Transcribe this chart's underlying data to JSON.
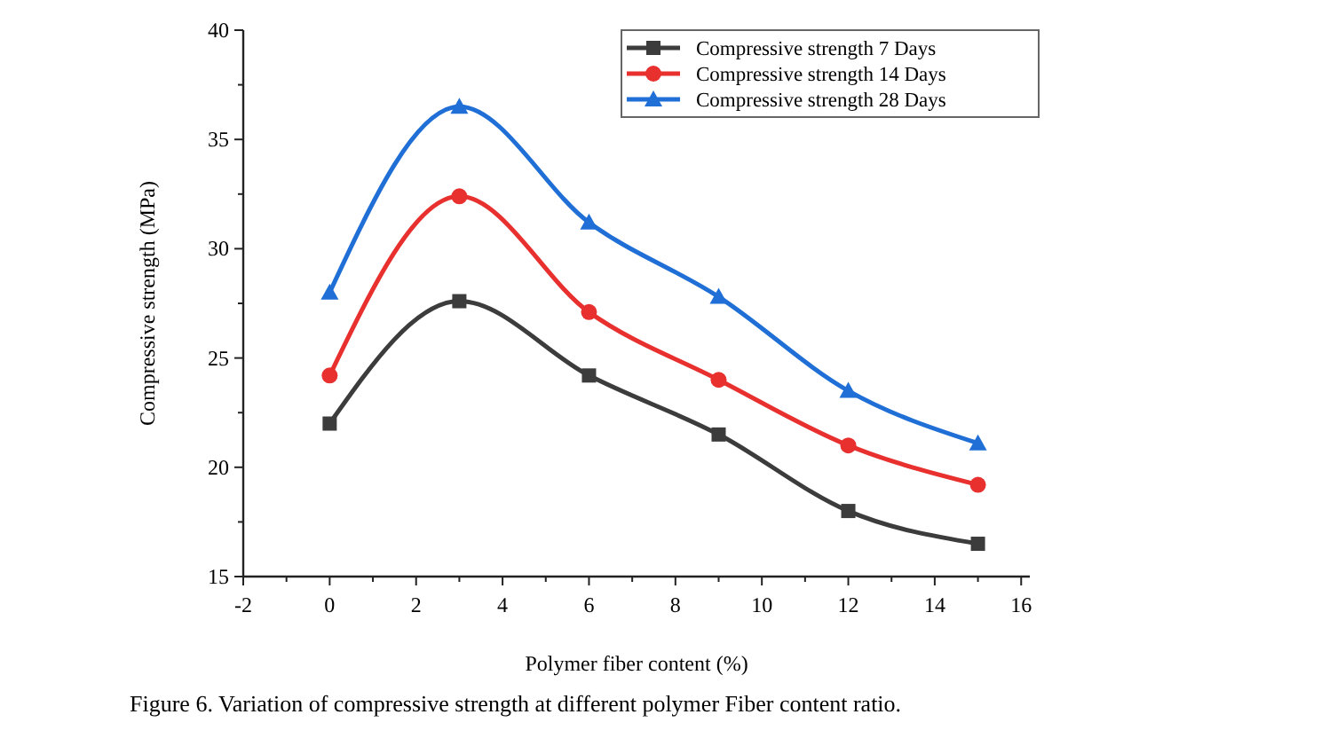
{
  "chart_data": {
    "type": "line",
    "xlabel": "Polymer fiber content (%)",
    "ylabel": "Compressive strength (MPa)",
    "x": [
      0,
      3,
      6,
      9,
      12,
      15
    ],
    "series": [
      {
        "name": "Compressive strength 7 Days",
        "color": "#3c3c3c",
        "marker": "square",
        "values": [
          22,
          27.6,
          24.2,
          21.5,
          18,
          16.5
        ]
      },
      {
        "name": "Compressive strength 14 Days",
        "color": "#e8302f",
        "marker": "circle",
        "values": [
          24.2,
          32.4,
          27.1,
          24,
          21,
          19.2
        ]
      },
      {
        "name": "Compressive strength 28 Days",
        "color": "#1f6fd6",
        "marker": "triangle",
        "values": [
          28,
          36.5,
          31.2,
          27.8,
          23.5,
          21.1
        ]
      }
    ],
    "xlim": [
      -2,
      16.2
    ],
    "xticks": [
      -2,
      {
        "value": -1,
        "label": null
      },
      0,
      {
        "value": 1,
        "label": null
      },
      2,
      {
        "value": 3,
        "label": null
      },
      4,
      {
        "value": 5,
        "label": null
      },
      6,
      {
        "value": 7,
        "label": null
      },
      8,
      {
        "value": 9,
        "label": null
      },
      10,
      {
        "value": 11,
        "label": null
      },
      12,
      {
        "value": 13,
        "label": null
      },
      14,
      {
        "value": 15,
        "label": null
      },
      16
    ],
    "ylim": [
      15,
      40
    ],
    "yticks": [
      15,
      {
        "value": 17.5,
        "label": null
      },
      20,
      {
        "value": 22.5,
        "label": null
      },
      25,
      {
        "value": 27.5,
        "label": null
      },
      30,
      {
        "value": 32.5,
        "label": null
      },
      35,
      {
        "value": 37.5,
        "label": null
      },
      40
    ],
    "grid": false,
    "legend": "top right",
    "line_style": "solid",
    "annotations": [
      "Figure 6. Variation of compressive strength at different polymer Fiber content ratio."
    ]
  }
}
